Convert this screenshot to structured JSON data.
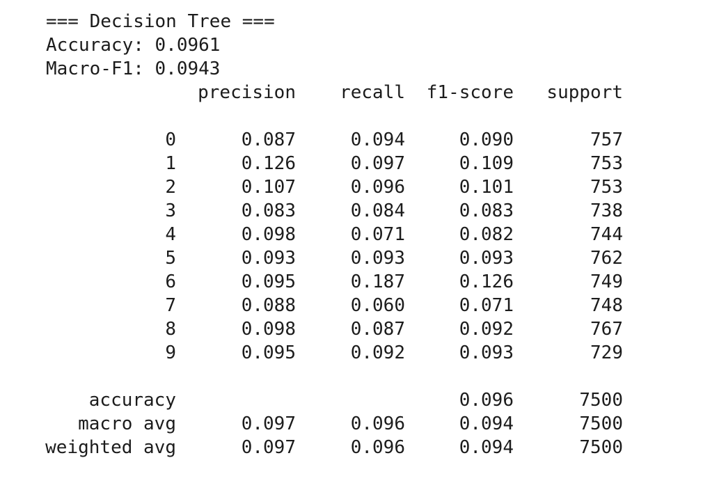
{
  "header": {
    "title": "=== Decision Tree ===",
    "accuracy": "Accuracy: 0.0961",
    "macro_f1": "Macro-F1: 0.0943"
  },
  "report": {
    "columns": [
      "precision",
      "recall",
      "f1-score",
      "support"
    ],
    "rows": [
      {
        "label": "0",
        "precision": "0.087",
        "recall": "0.094",
        "f1": "0.090",
        "support": "757"
      },
      {
        "label": "1",
        "precision": "0.126",
        "recall": "0.097",
        "f1": "0.109",
        "support": "753"
      },
      {
        "label": "2",
        "precision": "0.107",
        "recall": "0.096",
        "f1": "0.101",
        "support": "753"
      },
      {
        "label": "3",
        "precision": "0.083",
        "recall": "0.084",
        "f1": "0.083",
        "support": "738"
      },
      {
        "label": "4",
        "precision": "0.098",
        "recall": "0.071",
        "f1": "0.082",
        "support": "744"
      },
      {
        "label": "5",
        "precision": "0.093",
        "recall": "0.093",
        "f1": "0.093",
        "support": "762"
      },
      {
        "label": "6",
        "precision": "0.095",
        "recall": "0.187",
        "f1": "0.126",
        "support": "749"
      },
      {
        "label": "7",
        "precision": "0.088",
        "recall": "0.060",
        "f1": "0.071",
        "support": "748"
      },
      {
        "label": "8",
        "precision": "0.098",
        "recall": "0.087",
        "f1": "0.092",
        "support": "767"
      },
      {
        "label": "9",
        "precision": "0.095",
        "recall": "0.092",
        "f1": "0.093",
        "support": "729"
      }
    ],
    "summary": [
      {
        "label": "accuracy",
        "precision": "",
        "recall": "",
        "f1": "0.096",
        "support": "7500"
      },
      {
        "label": "macro avg",
        "precision": "0.097",
        "recall": "0.096",
        "f1": "0.094",
        "support": "7500"
      },
      {
        "label": "weighted avg",
        "precision": "0.097",
        "recall": "0.096",
        "f1": "0.094",
        "support": "7500"
      }
    ]
  }
}
